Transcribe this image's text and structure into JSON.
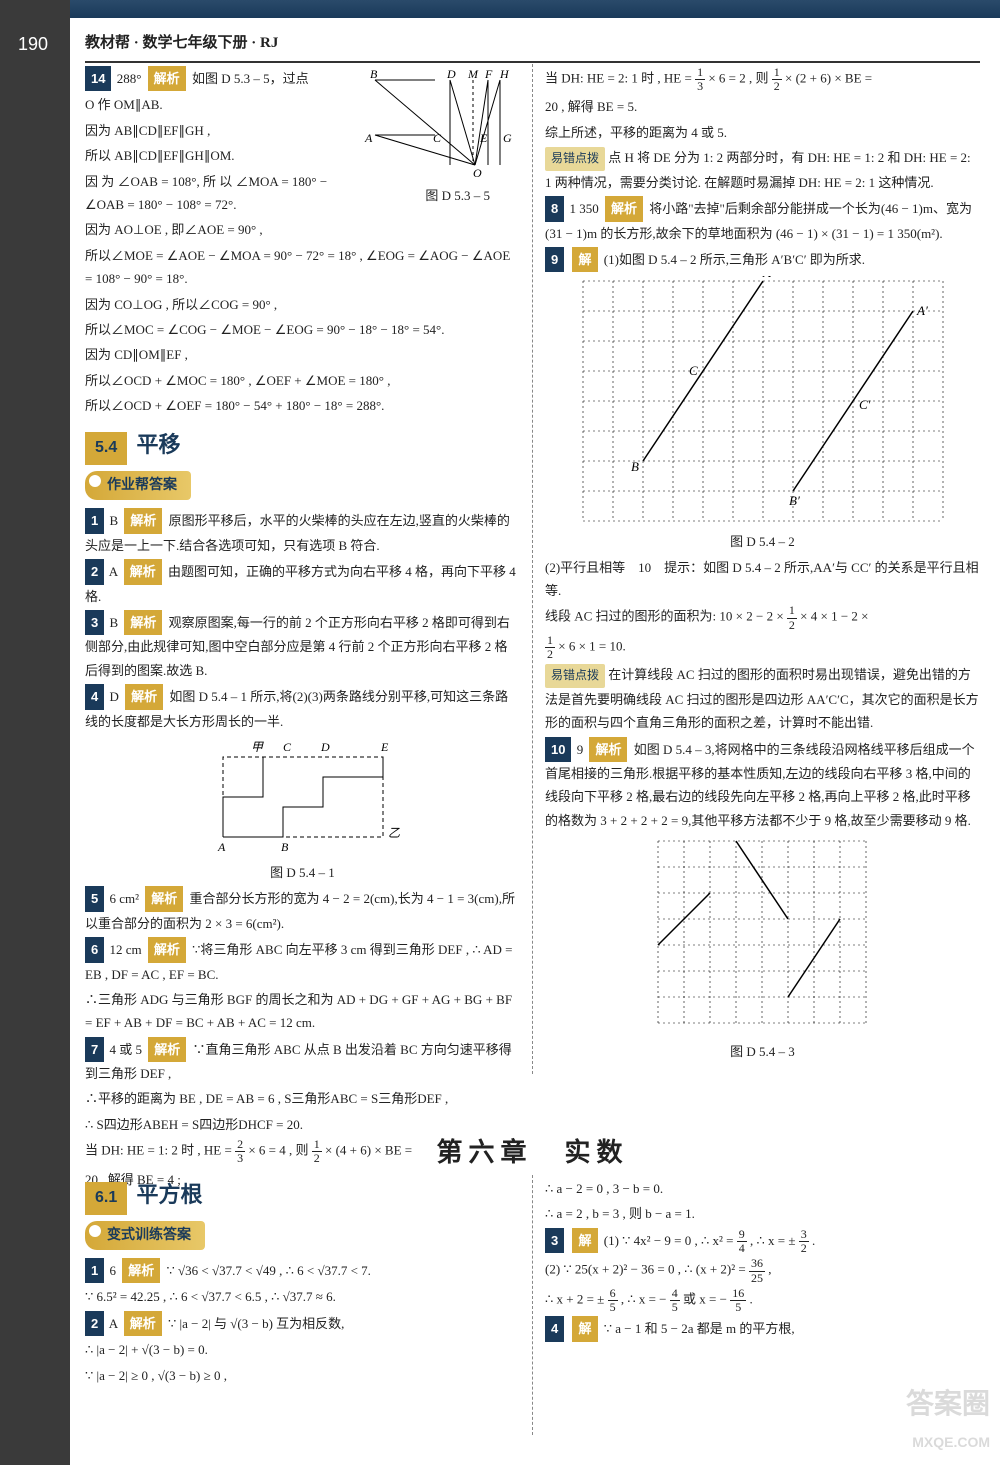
{
  "page_number": "190",
  "header": "教材帮 · 数学七年级下册 · RJ",
  "labels": {
    "jiexi": "解析",
    "jie": "解",
    "tip": "易错点拨"
  },
  "sec54": {
    "num": "5.4",
    "title": "平移",
    "sub": "作业帮答案"
  },
  "sec61": {
    "num": "6.1",
    "title": "平方根",
    "sub": "变式训练答案"
  },
  "chapter": "第六章　实数",
  "left": {
    "q14": {
      "num": "14",
      "ans": "288°",
      "l1": "如图 D 5.3 – 5，过点",
      "l2": "O 作 OM∥AB.",
      "l3": "因为 AB∥CD∥EF∥GH ,",
      "l4": "所以 AB∥CD∥EF∥GH∥OM.",
      "l5": "因 为 ∠OAB = 108°, 所 以 ∠MOA = 180° − ∠OAB = 180° − 108° = 72°.",
      "l6": "因为 AO⊥OE , 即∠AOE = 90° ,",
      "l7": "所以∠MOE = ∠AOE − ∠MOA = 90° − 72° = 18° , ∠EOG = ∠AOG − ∠AOE = 108° − 90° = 18°.",
      "l8": "因为 CO⊥OG , 所以∠COG = 90° ,",
      "l9": "所以∠MOC = ∠COG − ∠MOE − ∠EOG = 90° − 18° − 18° = 54°.",
      "l10": "因为 CD∥OM∥EF ,",
      "l11": "所以∠OCD + ∠MOC = 180° , ∠OEF + ∠MOE = 180° ,",
      "l12": "所以∠OCD + ∠OEF = 180° − 54° + 180° − 18° = 288°."
    },
    "fig53_5": {
      "caption": "图 D 5.3 – 5",
      "pts": {
        "B": "B",
        "D": "D",
        "M": "M",
        "F": "F",
        "H": "H",
        "A": "A",
        "C": "C",
        "E": "E",
        "G": "G",
        "O": "O"
      }
    },
    "q1": {
      "num": "1",
      "ans": "B",
      "txt": "原图形平移后，水平的火柴棒的头应在左边,竖直的火柴棒的头应是一上一下.结合各选项可知，只有选项 B 符合."
    },
    "q2": {
      "num": "2",
      "ans": "A",
      "txt": "由题图可知，正确的平移方式为向右平移 4 格，再向下平移 4 格."
    },
    "q3": {
      "num": "3",
      "ans": "B",
      "txt": "观察原图案,每一行的前 2 个正方形向右平移 2 格即可得到右侧部分,由此规律可知,图中空白部分应是第 4 行前 2 个正方形向右平移 2 格后得到的图案.故选 B."
    },
    "q4": {
      "num": "4",
      "ans": "D",
      "txt": "如图 D 5.4 – 1 所示,将(2)(3)两条路线分别平移,可知这三条路线的长度都是大长方形周长的一半."
    },
    "fig54_1": {
      "caption": "图 D 5.4 – 1",
      "labels": {
        "jia": "甲",
        "yi": "乙",
        "A": "A",
        "B": "B",
        "C": "C",
        "D": "D",
        "E": "E"
      }
    },
    "q5": {
      "num": "5",
      "ans": "6 cm²",
      "txt": "重合部分长方形的宽为 4 − 2 = 2(cm),长为 4 − 1 = 3(cm),所以重合部分的面积为 2 × 3 = 6(cm²)."
    },
    "q6": {
      "num": "6",
      "ans": "12 cm",
      "l1": "∵将三角形 ABC 向左平移 3 cm 得到三角形 DEF , ∴ AD = EB , DF = AC , EF = BC.",
      "l2": "∴三角形 ADG 与三角形 BGF 的周长之和为 AD + DG + GF + AG + BG + BF = EF + AB + DF = BC + AB + AC = 12 cm."
    },
    "q7": {
      "num": "7",
      "ans": "4 或 5",
      "l1": "∵直角三角形 ABC 从点 B 出发沿着 BC 方向匀速平移得到三角形 DEF ,",
      "l2": "∴平移的距离为 BE , DE = AB = 6 , S三角形ABC = S三角形DEF ,",
      "l3": "∴ S四边形ABEH = S四边形DHCF = 20.",
      "l4a": "当 DH: HE = 1: 2 时 , HE = ",
      "l4b": " × 6 = 4 , 则",
      "l4c": " × (4 + 6) × BE =",
      "l5": "20 , 解得 BE = 4 ;"
    }
  },
  "right": {
    "q7c": {
      "l1a": "当 DH: HE = 2: 1 时 , HE = ",
      "l1b": " × 6 = 2 , 则",
      "l1c": " × (2 + 6) × BE =",
      "l2": "20 , 解得 BE = 5.",
      "l3": "综上所述，平移的距离为 4 或 5.",
      "tip": "点 H 将 DE 分为 1: 2 两部分时，有 DH: HE = 1: 2 和 DH: HE = 2: 1 两种情况，需要分类讨论. 在解题时易漏掉 DH: HE = 2: 1 这种情况."
    },
    "q8": {
      "num": "8",
      "ans": "1 350",
      "txt": "将小路\"去掉\"后剩余部分能拼成一个长为(46 − 1)m、宽为(31 − 1)m 的长方形,故余下的草地面积为 (46 − 1) × (31 − 1) = 1 350(m²)."
    },
    "q9": {
      "num": "9",
      "l1": "(1)如图 D 5.4 – 2 所示,三角形 A′B′C′ 即为所求.",
      "l2": "(2)平行且相等　10　提示：如图 D 5.4 – 2 所示,AA′与 CC′ 的关系是平行且相等.",
      "l3a": "线段 AC 扫过的图形的面积为: 10 × 2 − 2 × ",
      "l3b": " × 4 × 1 − 2 ×",
      "l3c": " × 6 × 1 = 10.",
      "tip": "在计算线段 AC 扫过的图形的面积时易出现错误，避免出错的方法是首先要明确线段 AC 扫过的图形是四边形 AA′C′C，其次它的面积是长方形的面积与四个直角三角形的面积之差，计算时不能出错."
    },
    "fig54_2": {
      "caption": "图 D 5.4 – 2",
      "labels": {
        "A": "A",
        "B": "B",
        "C": "C",
        "Ap": "A′",
        "Bp": "B′",
        "Cp": "C′"
      },
      "grid": {
        "cols": 12,
        "rows": 8,
        "cell": 30
      },
      "tri1": [
        [
          6,
          0
        ],
        [
          2,
          6
        ],
        [
          4,
          3
        ]
      ],
      "tri2": [
        [
          11,
          1
        ],
        [
          7,
          7
        ],
        [
          9,
          4
        ]
      ]
    },
    "q10": {
      "num": "10",
      "ans": "9",
      "txt": "如图 D 5.4 – 3,将网格中的三条线段沿网格线平移后组成一个首尾相接的三角形.根据平移的基本性质知,左边的线段向右平移 3 格,中间的线段向下平移 2 格,最右边的线段先向左平移 2 格,再向上平移 2 格,此时平移的格数为 3 + 2 + 2 + 2 = 9,其他平移方法都不少于 9 格,故至少需要移动 9 格."
    },
    "fig54_3": {
      "caption": "图 D 5.4 – 3",
      "grid": {
        "cols": 8,
        "rows": 7,
        "cell": 26
      },
      "segs": [
        [
          [
            0,
            4
          ],
          [
            2,
            2
          ]
        ],
        [
          [
            3,
            0
          ],
          [
            5,
            3
          ]
        ],
        [
          [
            5,
            6
          ],
          [
            7,
            3
          ]
        ]
      ]
    }
  },
  "bottom_left": {
    "q1": {
      "num": "1",
      "ans": "6",
      "l1": "∵ √36 < √37.7 < √49 , ∴ 6 < √37.7 < 7.",
      "l2": "∵ 6.5² = 42.25 , ∴ 6 < √37.7 < 6.5 , ∴ √37.7 ≈ 6."
    },
    "q2": {
      "num": "2",
      "ans": "A",
      "l1": "∵ |a − 2| 与 √(3 − b) 互为相反数,",
      "l2": "∴ |a − 2| + √(3 − b) = 0.",
      "l3": "∵ |a − 2| ≥ 0 , √(3 − b) ≥ 0 ,"
    }
  },
  "bottom_right": {
    "q2c": {
      "l1": "∴ a − 2 = 0 , 3 − b = 0.",
      "l2": "∴ a = 2 , b = 3 , 则 b − a = 1."
    },
    "q3": {
      "num": "3",
      "l1a": "(1) ∵ 4x² − 9 = 0 , ∴ x² = ",
      "l1b": " , ∴ x = ± ",
      "l1c": ".",
      "l2a": "(2) ∵ 25(x + 2)² − 36 = 0 , ∴ (x + 2)² = ",
      "l2b": " ,",
      "l3a": "∴ x + 2 = ± ",
      "l3b": " , ∴ x = − ",
      "l3c": " 或 x = − ",
      "l3d": "."
    },
    "q4": {
      "num": "4",
      "txt": "∵ a − 1 和 5 − 2a 都是 m 的平方根,"
    }
  },
  "watermark": {
    "main": "答案圈",
    "sub": "MXQE.COM"
  },
  "fracs": {
    "f13": {
      "n": "1",
      "d": "3"
    },
    "f12": {
      "n": "1",
      "d": "2"
    },
    "f23": {
      "n": "2",
      "d": "3"
    },
    "f94": {
      "n": "9",
      "d": "4"
    },
    "f32": {
      "n": "3",
      "d": "2"
    },
    "f3625": {
      "n": "36",
      "d": "25"
    },
    "f65": {
      "n": "6",
      "d": "5"
    },
    "f45": {
      "n": "4",
      "d": "5"
    },
    "f165": {
      "n": "16",
      "d": "5"
    }
  }
}
